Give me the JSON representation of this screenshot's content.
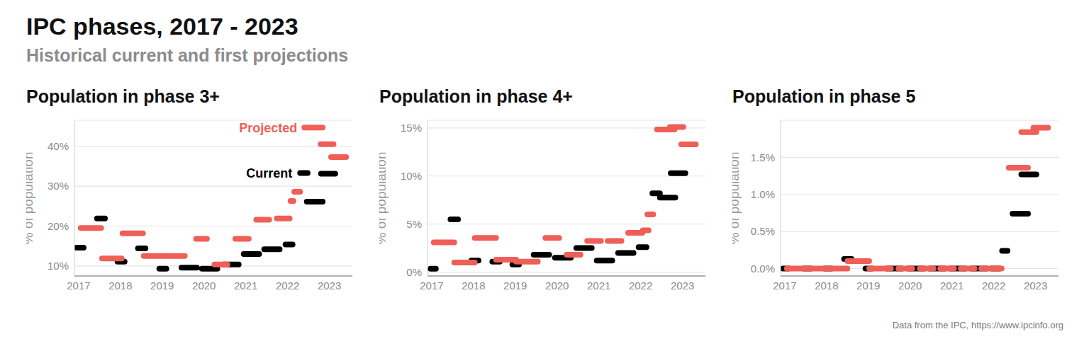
{
  "title": "IPC phases, 2017 - 2023",
  "subtitle": "Historical current and first projections",
  "source": "Data from the IPC, https://www.ipcinfo.org",
  "chart_data": [
    {
      "type": "segment",
      "title": "Population in phase 3+",
      "y_label": "% of population",
      "xlim": [
        2016.9,
        2023.55
      ],
      "xticks": [
        2017,
        2018,
        2019,
        2020,
        2021,
        2022,
        2023
      ],
      "ylim": [
        7.5,
        46.5
      ],
      "yticks": [
        {
          "value": 10,
          "label": "10%"
        },
        {
          "value": 20,
          "label": "20%"
        },
        {
          "value": 30,
          "label": "30%"
        },
        {
          "value": 40,
          "label": "40%"
        }
      ],
      "grid": true,
      "series": [
        {
          "name": "Current",
          "color": "#000000",
          "x_start": [
            2016.95,
            2017.44,
            2017.93,
            2018.42,
            2018.93,
            2019.46,
            2019.95,
            2020.46,
            2020.95,
            2021.44,
            2021.95,
            2022.3,
            2022.46,
            2022.8
          ],
          "x_end": [
            2017.12,
            2017.63,
            2018.1,
            2018.6,
            2019.1,
            2019.83,
            2020.32,
            2020.83,
            2021.32,
            2021.81,
            2022.12,
            2022.48,
            2022.84,
            2023.14
          ],
          "values": [
            14.6,
            21.9,
            11.1,
            14.4,
            9.3,
            9.6,
            9.3,
            10.4,
            13.0,
            14.2,
            15.4,
            33.3,
            26.1,
            33.1
          ]
        },
        {
          "name": "Projected",
          "color": "#ef5f57",
          "x_start": [
            2017.05,
            2017.56,
            2018.05,
            2018.56,
            2019.05,
            2019.81,
            2020.25,
            2020.75,
            2021.25,
            2021.74,
            2022.07,
            2022.16,
            2022.4,
            2022.79,
            2023.04
          ],
          "x_end": [
            2017.54,
            2018.03,
            2018.54,
            2019.03,
            2019.54,
            2020.07,
            2020.56,
            2021.07,
            2021.56,
            2022.05,
            2022.14,
            2022.3,
            2022.84,
            2023.1,
            2023.4
          ],
          "values": [
            19.5,
            11.9,
            18.2,
            12.5,
            12.5,
            16.8,
            10.4,
            16.8,
            21.6,
            21.9,
            26.3,
            28.6,
            44.7,
            40.5,
            37.3
          ]
        }
      ],
      "annotations": [
        {
          "text": "Projected",
          "x": 2022.3,
          "y": 44.7,
          "color": "#ef5f57"
        },
        {
          "text": "Current",
          "x": 2022.18,
          "y": 33.3,
          "color": "#000000"
        }
      ]
    },
    {
      "type": "segment",
      "title": "Population in phase 4+",
      "y_label": "% of population",
      "xlim": [
        2016.9,
        2023.55
      ],
      "xticks": [
        2017,
        2018,
        2019,
        2020,
        2021,
        2022,
        2023
      ],
      "ylim": [
        -0.4,
        15.8
      ],
      "yticks": [
        {
          "value": 0,
          "label": "0%"
        },
        {
          "value": 5,
          "label": "5%"
        },
        {
          "value": 10,
          "label": "10%"
        },
        {
          "value": 15,
          "label": "15%"
        }
      ],
      "grid": true,
      "series": [
        {
          "name": "Current",
          "color": "#000000",
          "x_start": [
            2016.97,
            2017.45,
            2017.95,
            2018.45,
            2018.93,
            2019.44,
            2019.95,
            2020.46,
            2020.95,
            2021.46,
            2021.95,
            2022.28,
            2022.46,
            2022.72
          ],
          "x_end": [
            2017.1,
            2017.63,
            2018.12,
            2018.63,
            2019.09,
            2019.81,
            2020.33,
            2020.83,
            2021.32,
            2021.83,
            2022.14,
            2022.46,
            2022.83,
            2023.07
          ],
          "values": [
            0.36,
            5.5,
            1.2,
            1.1,
            0.8,
            1.8,
            1.5,
            2.5,
            1.2,
            2.0,
            2.6,
            8.2,
            7.75,
            10.3
          ]
        },
        {
          "name": "Projected",
          "color": "#ef5f57",
          "x_start": [
            2017.05,
            2017.54,
            2018.03,
            2018.54,
            2019.02,
            2019.72,
            2020.23,
            2020.72,
            2021.21,
            2021.7,
            2022.05,
            2022.16,
            2022.39,
            2022.7,
            2022.97
          ],
          "x_end": [
            2017.54,
            2018.03,
            2018.54,
            2019.02,
            2019.54,
            2020.05,
            2020.56,
            2021.05,
            2021.54,
            2022.04,
            2022.19,
            2022.3,
            2022.81,
            2023.02,
            2023.32
          ],
          "values": [
            3.1,
            1.0,
            3.55,
            1.3,
            1.1,
            3.55,
            1.8,
            3.25,
            3.25,
            4.1,
            4.35,
            6.0,
            14.85,
            15.1,
            13.3
          ]
        }
      ]
    },
    {
      "type": "segment",
      "title": "Population in phase 5",
      "y_label": "% of population",
      "xlim": [
        2016.9,
        2023.55
      ],
      "xticks": [
        2017,
        2018,
        2019,
        2020,
        2021,
        2022,
        2023
      ],
      "ylim": [
        -0.1,
        2.0
      ],
      "yticks": [
        {
          "value": 0,
          "label": "0.0%"
        },
        {
          "value": 0.5,
          "label": "0.5%"
        },
        {
          "value": 1,
          "label": "1.0%"
        },
        {
          "value": 1.5,
          "label": "1.5%"
        }
      ],
      "grid": true,
      "series": [
        {
          "name": "Current",
          "color": "#000000",
          "x_start": [
            2016.95,
            2017.45,
            2017.95,
            2018.42,
            2018.93,
            2019.44,
            2019.95,
            2020.46,
            2020.95,
            2021.46,
            2021.95,
            2022.2,
            2022.45,
            2022.66
          ],
          "x_end": [
            2017.1,
            2017.63,
            2018.12,
            2018.6,
            2019.09,
            2019.81,
            2020.33,
            2020.83,
            2021.32,
            2021.83,
            2022.14,
            2022.33,
            2022.82,
            2023.02
          ],
          "values": [
            0,
            0,
            0,
            0.13,
            0,
            0,
            0,
            0,
            0,
            0,
            0,
            0.24,
            0.74,
            1.27
          ]
        },
        {
          "name": "Projected",
          "color": "#ef5f57",
          "x_start": [
            2017.05,
            2017.54,
            2018.03,
            2018.5,
            2019.02,
            2019.72,
            2020.23,
            2020.72,
            2021.21,
            2021.7,
            2022.05,
            2022.36,
            2022.66,
            2022.95
          ],
          "x_end": [
            2017.54,
            2018.03,
            2018.5,
            2019.02,
            2019.54,
            2020.05,
            2020.56,
            2021.05,
            2021.54,
            2022.04,
            2022.19,
            2022.82,
            2023.02,
            2023.3
          ],
          "values": [
            0,
            0,
            0,
            0.1,
            0,
            0,
            0,
            0,
            0,
            0,
            0,
            1.36,
            1.84,
            1.9
          ]
        }
      ]
    }
  ]
}
